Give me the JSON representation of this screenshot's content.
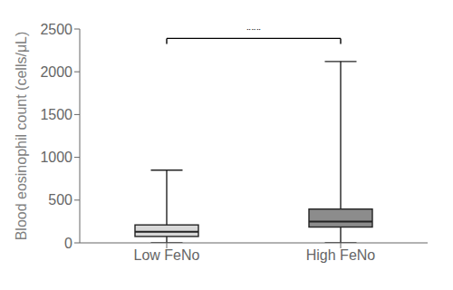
{
  "chart_data": {
    "type": "box",
    "categories": [
      "Low FeNo",
      "High FeNo"
    ],
    "boxes": [
      {
        "whisker_low": 0,
        "q1": 75,
        "median": 130,
        "q3": 210,
        "whisker_high": 850
      },
      {
        "whisker_low": 0,
        "q1": 185,
        "median": 250,
        "q3": 395,
        "whisker_high": 2120
      }
    ],
    "colors": [
      "#d8d8d8",
      "#8c8c8c"
    ],
    "ylabel": "Blood eosinophil count (cells/μL)",
    "ylim": [
      0,
      2500
    ],
    "yticks": [
      0,
      500,
      1000,
      1500,
      2000,
      2500
    ],
    "grid": false,
    "annotations": [
      {
        "text": "***",
        "from": "Low FeNo",
        "to": "High FeNo",
        "y": 2390
      }
    ]
  }
}
